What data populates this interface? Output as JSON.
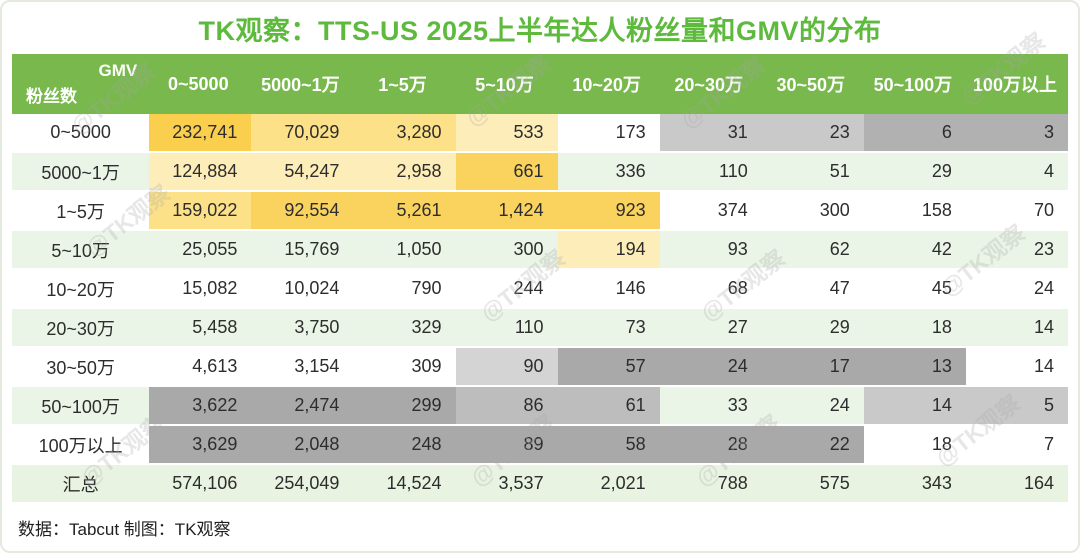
{
  "title": "TK观察：TTS-US 2025上半年达人粉丝量和GMV的分布",
  "footer": "数据：Tabcut 制图：TK观察",
  "watermark_text": "@TK观察",
  "colors": {
    "title_green": "#5eba3d",
    "header_green": "#78b84c",
    "row_white": "#ffffff",
    "row_alt_green": "#ebf5e7",
    "summary_green": "#e9f3e2",
    "cell_palette": {
      "y1": "#fbcf4e",
      "y2": "#fad35e",
      "y3": "#fce189",
      "y4": "#fdedb9",
      "g1": "#a9a9a9",
      "g2": "#b1b1b1",
      "g3": "#c9c9c9",
      "g4": "#bdbdbd",
      "g5": "#d4d4d4"
    }
  },
  "chart_data": {
    "type": "table",
    "title": "TK观察：TTS-US 2025上半年达人粉丝量和GMV的分布",
    "corner_top_label": "GMV",
    "corner_bottom_label": "粉丝数",
    "columns": [
      "0~5000",
      "5000~1万",
      "1~5万",
      "5~10万",
      "10~20万",
      "20~30万",
      "30~50万",
      "50~100万",
      "100万以上"
    ],
    "rows": [
      {
        "label": "0~5000",
        "base": "white",
        "values": [
          "232,741",
          "70,029",
          "3,280",
          "533",
          "173",
          "31",
          "23",
          "6",
          "3"
        ],
        "cell_colors": [
          "y1",
          "y3",
          "y3",
          "y4",
          "",
          "g3",
          "g3",
          "g2",
          "g2"
        ]
      },
      {
        "label": "5000~1万",
        "base": "green",
        "values": [
          "124,884",
          "54,247",
          "2,958",
          "661",
          "336",
          "110",
          "51",
          "29",
          "4"
        ],
        "cell_colors": [
          "y4",
          "y4",
          "y4",
          "y2",
          "",
          "",
          "",
          "",
          ""
        ]
      },
      {
        "label": "1~5万",
        "base": "white",
        "values": [
          "159,022",
          "92,554",
          "5,261",
          "1,424",
          "923",
          "374",
          "300",
          "158",
          "70"
        ],
        "cell_colors": [
          "y3",
          "y2",
          "y2",
          "y2",
          "y2",
          "",
          "",
          "",
          ""
        ]
      },
      {
        "label": "5~10万",
        "base": "green",
        "values": [
          "25,055",
          "15,769",
          "1,050",
          "300",
          "194",
          "93",
          "62",
          "42",
          "23"
        ],
        "cell_colors": [
          "",
          "",
          "",
          "",
          "y4",
          "",
          "",
          "",
          ""
        ]
      },
      {
        "label": "10~20万",
        "base": "white",
        "values": [
          "15,082",
          "10,024",
          "790",
          "244",
          "146",
          "68",
          "47",
          "45",
          "24"
        ],
        "cell_colors": [
          "",
          "",
          "",
          "",
          "",
          "",
          "",
          "",
          ""
        ]
      },
      {
        "label": "20~30万",
        "base": "green",
        "values": [
          "5,458",
          "3,750",
          "329",
          "110",
          "73",
          "27",
          "29",
          "18",
          "14"
        ],
        "cell_colors": [
          "",
          "",
          "",
          "",
          "",
          "",
          "",
          "",
          ""
        ]
      },
      {
        "label": "30~50万",
        "base": "white",
        "values": [
          "4,613",
          "3,154",
          "309",
          "90",
          "57",
          "24",
          "17",
          "13",
          "14"
        ],
        "cell_colors": [
          "",
          "",
          "",
          "g5",
          "g1",
          "g1",
          "g1",
          "g1",
          ""
        ]
      },
      {
        "label": "50~100万",
        "base": "green",
        "values": [
          "3,622",
          "2,474",
          "299",
          "86",
          "61",
          "33",
          "24",
          "14",
          "5"
        ],
        "cell_colors": [
          "g1",
          "g1",
          "g1",
          "g4",
          "g4",
          "",
          "",
          "g3",
          "g3"
        ]
      },
      {
        "label": "100万以上",
        "base": "white",
        "values": [
          "3,629",
          "2,048",
          "248",
          "89",
          "58",
          "28",
          "22",
          "18",
          "7"
        ],
        "cell_colors": [
          "g1",
          "g1",
          "g1",
          "g1",
          "g1",
          "g1",
          "g1",
          "",
          ""
        ]
      },
      {
        "label": "汇总",
        "base": "summary",
        "values": [
          "574,106",
          "254,049",
          "14,524",
          "3,537",
          "2,021",
          "788",
          "575",
          "343",
          "164"
        ],
        "cell_colors": [
          "",
          "",
          "",
          "",
          "",
          "",
          "",
          "",
          ""
        ]
      }
    ]
  }
}
